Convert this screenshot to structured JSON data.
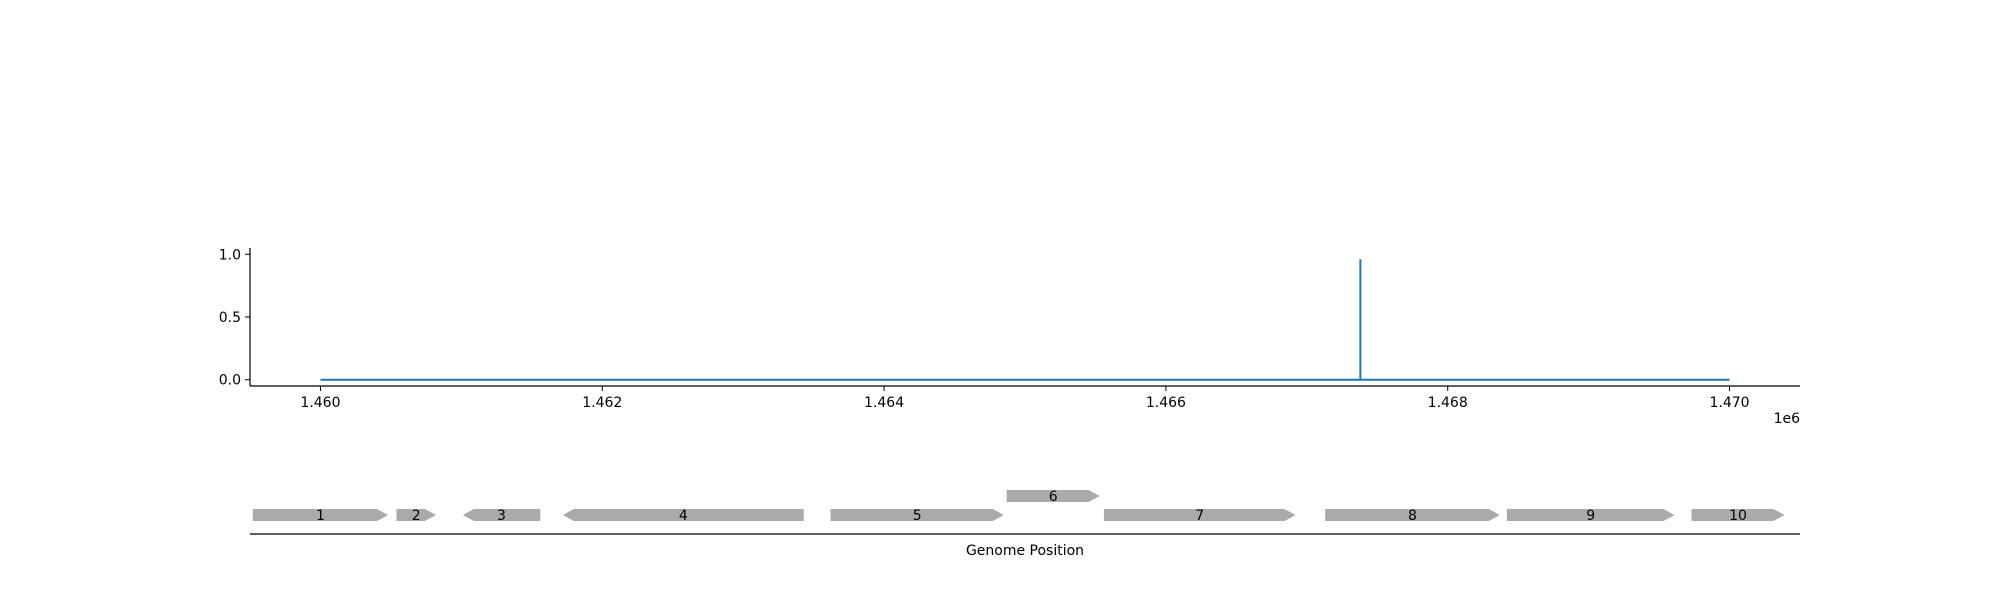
{
  "chart_data": [
    {
      "type": "line",
      "x": [
        1460000,
        1467380,
        1467380,
        1467380,
        1470000
      ],
      "y": [
        0,
        0,
        0.96,
        0,
        0
      ],
      "xlim": [
        1459500,
        1470500
      ],
      "ylim": [
        -0.05,
        1.05
      ],
      "x_ticks": [
        1460000,
        1462000,
        1464000,
        1466000,
        1468000,
        1470000
      ],
      "x_tick_labels": [
        "1.460",
        "1.462",
        "1.464",
        "1.466",
        "1.468",
        "1.470"
      ],
      "y_ticks": [
        0.0,
        0.5,
        1.0
      ],
      "y_tick_labels": [
        "0.0",
        "0.5",
        "1.0"
      ],
      "x_offset_label": "1e6",
      "xlabel": "",
      "ylabel": "",
      "grid": false,
      "line_color": "#1f77b4"
    },
    {
      "type": "gene_track",
      "xlabel": "Genome Position",
      "xlim": [
        1459500,
        1470500
      ],
      "gene_color": "#aaaaaa",
      "genes": [
        {
          "label": "1",
          "start": 1459520,
          "end": 1460480,
          "strand": 1,
          "track": 0
        },
        {
          "label": "2",
          "start": 1460540,
          "end": 1460820,
          "strand": 1,
          "track": 0
        },
        {
          "label": "3",
          "start": 1461010,
          "end": 1461560,
          "strand": -1,
          "track": 0
        },
        {
          "label": "4",
          "start": 1461720,
          "end": 1463430,
          "strand": -1,
          "track": 0
        },
        {
          "label": "5",
          "start": 1463620,
          "end": 1464850,
          "strand": 1,
          "track": 0
        },
        {
          "label": "6",
          "start": 1464870,
          "end": 1465530,
          "strand": 1,
          "track": 1
        },
        {
          "label": "7",
          "start": 1465560,
          "end": 1466920,
          "strand": 1,
          "track": 0
        },
        {
          "label": "8",
          "start": 1467130,
          "end": 1468370,
          "strand": 1,
          "track": 0
        },
        {
          "label": "9",
          "start": 1468420,
          "end": 1469610,
          "strand": 1,
          "track": 0
        },
        {
          "label": "10",
          "start": 1469730,
          "end": 1470390,
          "strand": 1,
          "track": 0
        }
      ]
    }
  ]
}
